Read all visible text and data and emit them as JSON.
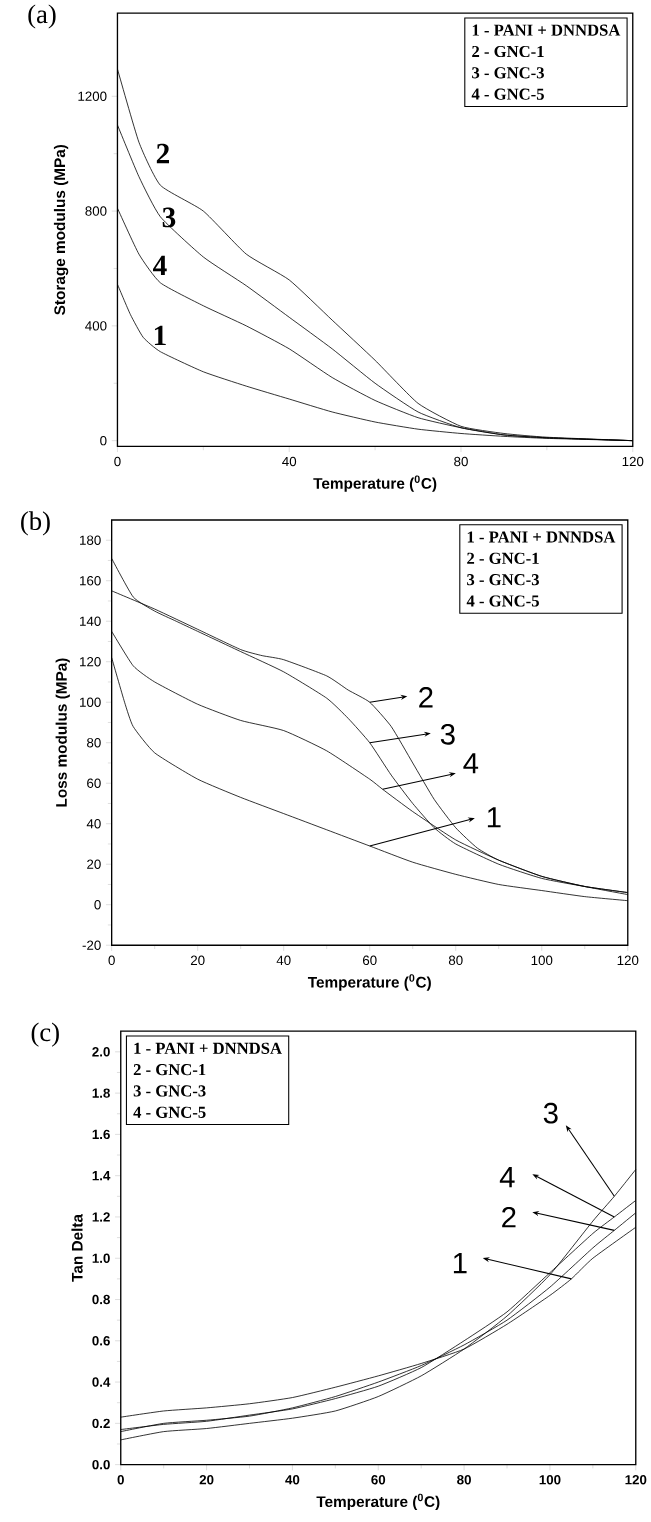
{
  "chart_data": [
    {
      "type": "line",
      "title": "(a)",
      "xlabel": "Temperature ($^{0}$C)",
      "ylabel": "Storage modulus (MPa)",
      "xlim": [
        0,
        120
      ],
      "ylim": [
        -20,
        1490
      ],
      "xticks": [
        0,
        40,
        80,
        120
      ],
      "yticks": [
        0,
        400,
        800,
        1200
      ],
      "annotations": [
        "1 - PANI + DNNDSA",
        "2 - GNC-1",
        "3 - GNC-3",
        "4 - GNC-5",
        "2",
        "3",
        "4",
        "1"
      ],
      "series": [
        {
          "color": "#000000",
          "x": [
            0,
            3,
            6,
            10,
            20,
            30,
            40,
            50,
            60,
            70,
            80,
            90,
            100,
            120
          ],
          "values": [
            545,
            440,
            360,
            310,
            240,
            190,
            145,
            100,
            65,
            40,
            25,
            15,
            8,
            0
          ]
        },
        {
          "color": "#000000",
          "x": [
            0,
            5,
            10,
            20,
            30,
            40,
            50,
            60,
            70,
            80,
            90,
            100,
            120
          ],
          "values": [
            1295,
            1040,
            890,
            800,
            650,
            560,
            420,
            280,
            130,
            50,
            25,
            12,
            0
          ]
        },
        {
          "color": "#000000",
          "x": [
            0,
            5,
            10,
            20,
            30,
            40,
            50,
            60,
            70,
            80,
            90,
            100,
            120
          ],
          "values": [
            1100,
            920,
            780,
            640,
            540,
            430,
            320,
            200,
            100,
            45,
            20,
            10,
            0
          ]
        },
        {
          "color": "#000000",
          "x": [
            0,
            5,
            10,
            20,
            30,
            40,
            50,
            60,
            70,
            80,
            90,
            100,
            120
          ],
          "values": [
            810,
            650,
            550,
            470,
            400,
            320,
            220,
            140,
            80,
            45,
            20,
            10,
            0
          ]
        }
      ]
    },
    {
      "type": "line",
      "title": "(b)",
      "xlabel": "Temperature ($^{0}$C)",
      "ylabel": "Loss modulus (MPa)",
      "xlim": [
        0,
        120
      ],
      "ylim": [
        -20,
        190
      ],
      "xticks": [
        0,
        20,
        40,
        60,
        80,
        100,
        120
      ],
      "yticks": [
        -20,
        0,
        20,
        40,
        60,
        80,
        100,
        120,
        140,
        160,
        180
      ],
      "annotations": [
        "1 - PANI + DNNDSA",
        "2 - GNC-1",
        "3 - GNC-3",
        "4 - GNC-5",
        {
          "text": "2",
          "x": 60,
          "y": 100
        },
        {
          "text": "3",
          "x": 60,
          "y": 80
        },
        {
          "text": "4",
          "x": 63,
          "y": 57
        },
        {
          "text": "1",
          "x": 60,
          "y": 29
        }
      ],
      "series": [
        {
          "color": "#000000",
          "x": [
            0,
            3,
            5,
            10,
            20,
            30,
            40,
            50,
            60,
            70,
            80,
            90,
            100,
            110,
            120
          ],
          "values": [
            122,
            100,
            88,
            75,
            62,
            53,
            45,
            37,
            29,
            21,
            15,
            10,
            7,
            4,
            2
          ]
        },
        {
          "color": "#000000",
          "x": [
            0,
            10,
            20,
            30,
            35,
            40,
            50,
            55,
            60,
            65,
            70,
            75,
            80,
            85,
            90,
            100,
            110,
            120
          ],
          "values": [
            155,
            146,
            136,
            126,
            123,
            121,
            113,
            106,
            100,
            88,
            70,
            52,
            38,
            28,
            22,
            14,
            9,
            6
          ]
        },
        {
          "color": "#000000",
          "x": [
            0,
            5,
            10,
            15,
            20,
            30,
            40,
            50,
            55,
            60,
            65,
            70,
            75,
            80,
            90,
            100,
            110,
            120
          ],
          "values": [
            171,
            152,
            145,
            140,
            135,
            125,
            115,
            102,
            92,
            80,
            64,
            50,
            38,
            30,
            20,
            13,
            9,
            6
          ]
        },
        {
          "color": "#000000",
          "x": [
            0,
            5,
            10,
            20,
            30,
            40,
            50,
            60,
            63,
            70,
            80,
            90,
            100,
            110,
            120
          ],
          "values": [
            135,
            118,
            110,
            99,
            91,
            86,
            76,
            62,
            57,
            46,
            32,
            22,
            14,
            9,
            5
          ]
        }
      ]
    },
    {
      "type": "line",
      "title": "(c)",
      "xlabel": "Temperature ($^{0}$C)",
      "ylabel": "Tan Delta",
      "xlim": [
        0,
        120
      ],
      "ylim": [
        0,
        2.1
      ],
      "xticks": [
        0,
        20,
        40,
        60,
        80,
        100,
        120
      ],
      "yticks": [
        {
          "value": 0,
          "label": "0.0"
        },
        {
          "value": 0.2,
          "label": "0.2"
        },
        {
          "value": 0.4,
          "label": "0.4"
        },
        {
          "value": 0.6,
          "label": "0.6"
        },
        {
          "value": 0.8,
          "label": "0.8"
        },
        {
          "value": 1,
          "label": "1.0"
        },
        {
          "value": 1.2,
          "label": "1.2"
        },
        {
          "value": 1.4,
          "label": "1.4"
        },
        {
          "value": 1.6,
          "label": "1.6"
        },
        {
          "value": 1.8,
          "label": "1.8"
        },
        {
          "value": 2,
          "label": "2.0"
        }
      ],
      "annotations": [
        "1 - PANI + DNNDSA",
        "2 - GNC-1",
        "3 - GNC-3",
        "4 - GNC-5",
        {
          "text": "3",
          "x": 115,
          "y": 1.3
        },
        {
          "text": "4",
          "x": 115,
          "y": 1.2
        },
        {
          "text": "2",
          "x": 115,
          "y": 1.135
        },
        {
          "text": "1",
          "x": 105,
          "y": 0.9
        }
      ],
      "series": [
        {
          "color": "#000000",
          "x": [
            0,
            10,
            20,
            30,
            40,
            50,
            60,
            70,
            80,
            90,
            100,
            105,
            110,
            120
          ],
          "values": [
            0.23,
            0.26,
            0.275,
            0.295,
            0.325,
            0.375,
            0.43,
            0.49,
            0.56,
            0.68,
            0.82,
            0.9,
            1.0,
            1.15
          ]
        },
        {
          "color": "#000000",
          "x": [
            0,
            10,
            20,
            30,
            40,
            50,
            60,
            70,
            80,
            90,
            100,
            110,
            115,
            120
          ],
          "values": [
            0.16,
            0.2,
            0.215,
            0.235,
            0.275,
            0.33,
            0.4,
            0.48,
            0.58,
            0.7,
            0.86,
            1.05,
            1.135,
            1.22
          ]
        },
        {
          "color": "#000000",
          "x": [
            0,
            10,
            20,
            30,
            40,
            50,
            60,
            70,
            80,
            90,
            100,
            110,
            115,
            120
          ],
          "values": [
            0.12,
            0.16,
            0.175,
            0.2,
            0.225,
            0.26,
            0.33,
            0.43,
            0.56,
            0.72,
            0.92,
            1.18,
            1.3,
            1.43
          ]
        },
        {
          "color": "#000000",
          "x": [
            0,
            10,
            20,
            30,
            40,
            50,
            60,
            70,
            80,
            90,
            100,
            110,
            115,
            120
          ],
          "values": [
            0.17,
            0.195,
            0.21,
            0.24,
            0.27,
            0.32,
            0.38,
            0.47,
            0.6,
            0.74,
            0.93,
            1.12,
            1.2,
            1.28
          ]
        }
      ]
    }
  ]
}
